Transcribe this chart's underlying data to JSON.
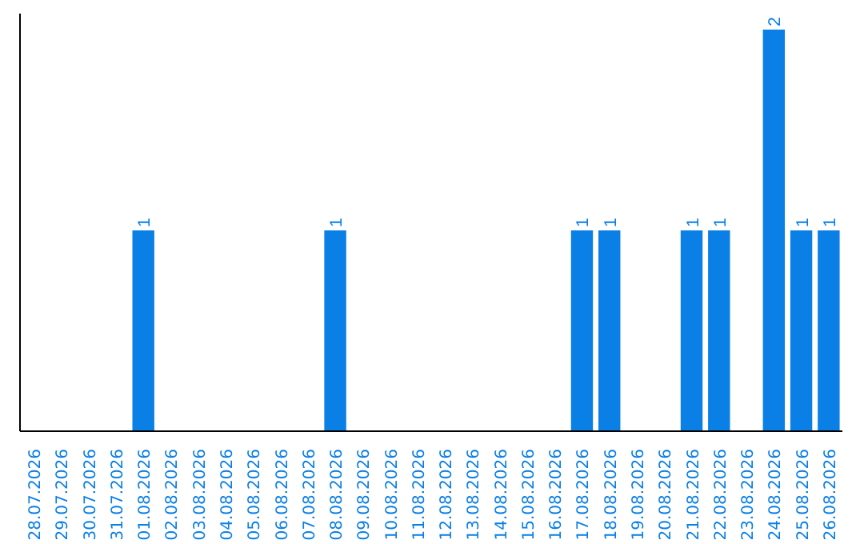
{
  "chart_data": {
    "type": "bar",
    "categories": [
      "28.07.2026",
      "29.07.2026",
      "30.07.2026",
      "31.07.2026",
      "01.08.2026",
      "02.08.2026",
      "03.08.2026",
      "04.08.2026",
      "05.08.2026",
      "06.08.2026",
      "07.08.2026",
      "08.08.2026",
      "09.08.2026",
      "10.08.2026",
      "11.08.2026",
      "12.08.2026",
      "13.08.2026",
      "14.08.2026",
      "15.08.2026",
      "16.08.2026",
      "17.08.2026",
      "18.08.2026",
      "19.08.2026",
      "20.08.2026",
      "21.08.2026",
      "22.08.2026",
      "23.08.2026",
      "24.08.2026",
      "25.08.2026",
      "26.08.2026"
    ],
    "values": [
      0,
      0,
      0,
      0,
      1,
      0,
      0,
      0,
      0,
      0,
      0,
      1,
      0,
      0,
      0,
      0,
      0,
      0,
      0,
      0,
      1,
      1,
      0,
      0,
      1,
      1,
      0,
      2,
      1,
      1
    ],
    "value_labels": [
      null,
      null,
      null,
      null,
      "1",
      null,
      null,
      null,
      null,
      null,
      null,
      "1",
      null,
      null,
      null,
      null,
      null,
      null,
      null,
      null,
      "1",
      "1",
      null,
      null,
      "1",
      "1",
      null,
      "2",
      "1",
      "1"
    ],
    "color": "#0a7fe6"
  }
}
